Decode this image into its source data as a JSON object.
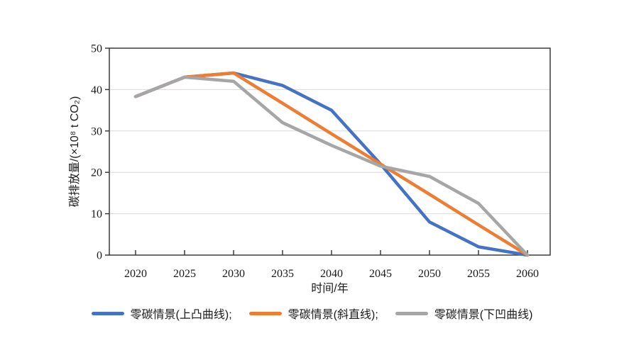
{
  "chart_data": {
    "type": "line",
    "title": "",
    "xlabel": "时间/年",
    "ylabel": "碳排放量/(×10⁸ t CO₂)",
    "x": [
      2020,
      2025,
      2030,
      2035,
      2040,
      2045,
      2050,
      2055,
      2060
    ],
    "x_tick_labels": [
      "2020",
      "2025",
      "2030",
      "2035",
      "2040",
      "2045",
      "2050",
      "2055",
      "2060"
    ],
    "xlim": [
      2020,
      2060
    ],
    "y_ticks": [
      0,
      10,
      20,
      30,
      40,
      50
    ],
    "ylim": [
      0,
      50
    ],
    "grid": "horizontal-only",
    "legend_position": "bottom",
    "axis_color": "#3a3a3a",
    "grid_color": "#d9d9d9",
    "series": [
      {
        "name": "零碳情景(上凸曲线);",
        "color": "#4472C4",
        "values": [
          38.3,
          43,
          44,
          41,
          35,
          22,
          8,
          2,
          0
        ]
      },
      {
        "name": "零碳情景(斜直线);",
        "color": "#ED7D31",
        "values": [
          38.3,
          43,
          44,
          36.7,
          29.3,
          22,
          14.7,
          7.3,
          0
        ]
      },
      {
        "name": "零碳情景(下凹曲线)",
        "color": "#A6A6A6",
        "values": [
          38.3,
          43,
          42,
          32,
          26.5,
          21.5,
          19,
          12.5,
          0
        ]
      }
    ]
  }
}
